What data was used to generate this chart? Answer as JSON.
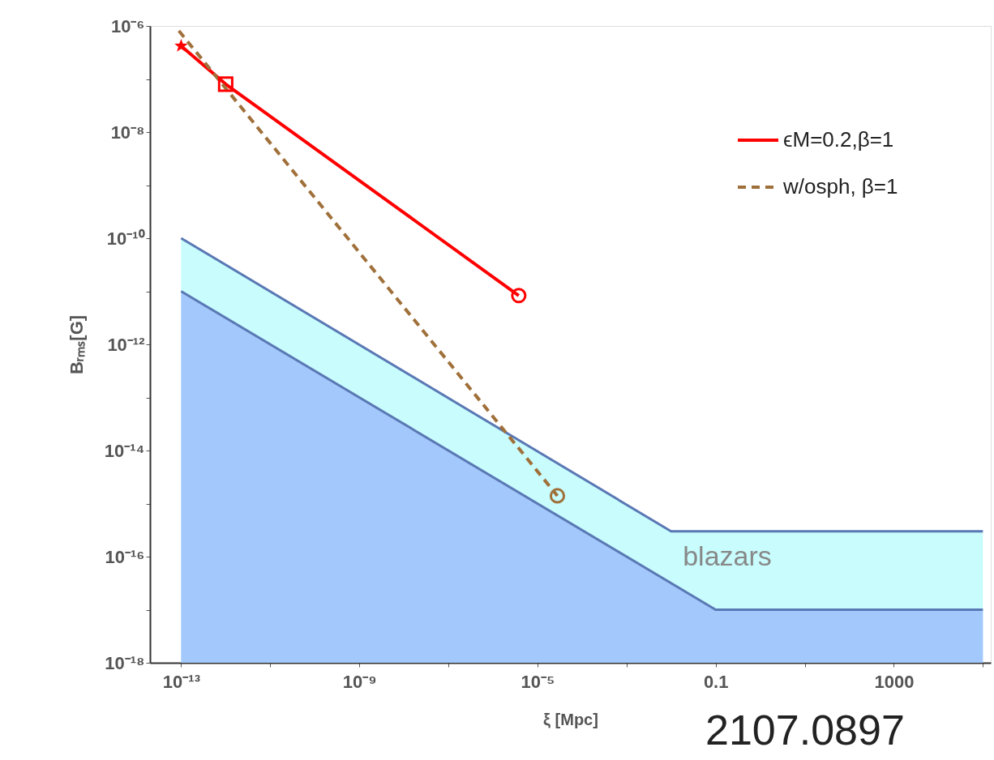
{
  "chart_data": {
    "type": "line",
    "xlabel": "ξ [Mpc]",
    "ylabel": "Bᵣₘₛ[G]",
    "log": "xy",
    "grid": false,
    "legend": "top right",
    "xlim": [
      2e-14,
      150000.0
    ],
    "ylim": [
      1e-18,
      1e-06
    ],
    "xticks": [
      {
        "value": 1e-13,
        "label": "10⁻¹³"
      },
      {
        "value": 1e-11,
        "label": null
      },
      {
        "value": 1e-09,
        "label": "10⁻⁹"
      },
      {
        "value": 1e-07,
        "label": null
      },
      {
        "value": 1e-05,
        "label": "10⁻⁵"
      },
      {
        "value": 0.001,
        "label": null
      },
      0.1,
      {
        "value": 10,
        "label": null
      },
      1000,
      {
        "value": 100000.0,
        "label": null
      }
    ],
    "yticks": [
      {
        "value": 1e-06,
        "label": "10⁻⁶"
      },
      {
        "value": 1e-07,
        "label": null
      },
      {
        "value": 1e-08,
        "label": "10⁻⁸"
      },
      {
        "value": 1e-09,
        "label": null
      },
      {
        "value": 1e-10,
        "label": "10⁻¹⁰"
      },
      {
        "value": 1e-11,
        "label": null
      },
      {
        "value": 1e-12,
        "label": "10⁻¹²"
      },
      {
        "value": 1e-13,
        "label": null
      },
      {
        "value": 1e-14,
        "label": "10⁻¹⁴"
      },
      {
        "value": 1e-15,
        "label": null
      },
      {
        "value": 1e-16,
        "label": "10⁻¹⁶"
      },
      {
        "value": 1e-17,
        "label": null
      },
      {
        "value": 1e-18,
        "label": "10⁻¹⁸"
      }
    ],
    "series": [
      {
        "type": "area",
        "color": "#c8fcfd",
        "x": [
          1e-13,
          0.01,
          100000.0
        ],
        "values": [
          1e-10,
          3e-16,
          3e-16
        ]
      },
      {
        "type": "area",
        "color": "#a3c8fb",
        "x": [
          1e-13,
          0.1,
          100000.0
        ],
        "values": [
          1e-11,
          1e-17,
          1e-17
        ]
      },
      {
        "name": "ϵM=0.2,β=1",
        "color": "#ff0000",
        "line_style": "solid",
        "x": [
          1e-13,
          1e-12,
          3.8e-06
        ],
        "values": [
          4.2e-07,
          8e-08,
          8.3e-12
        ]
      },
      {
        "name": "w/osph, β=1",
        "color": "#a0703a",
        "line_style": "dashed",
        "x": [
          8.9e-14,
          2.8e-05
        ],
        "values": [
          8.1e-07,
          1.4e-15
        ]
      },
      {
        "type": "scatter",
        "marker": "star",
        "color": "#ff0000",
        "x": [
          1e-13
        ],
        "values": [
          4.2e-07
        ]
      },
      {
        "type": "scatter",
        "marker": "square",
        "color": "#ff0000",
        "x": [
          1e-12
        ],
        "values": [
          8e-08
        ]
      },
      {
        "type": "scatter",
        "marker": "circle",
        "color": "#ff0000",
        "x": [
          3.8e-06
        ],
        "values": [
          8.3e-12
        ]
      },
      {
        "type": "scatter",
        "marker": "circle",
        "color": "#a0703a",
        "x": [
          2.8e-05
        ],
        "values": [
          1.4e-15
        ]
      }
    ],
    "annotations": [
      "blazars",
      "2107.0897"
    ]
  }
}
